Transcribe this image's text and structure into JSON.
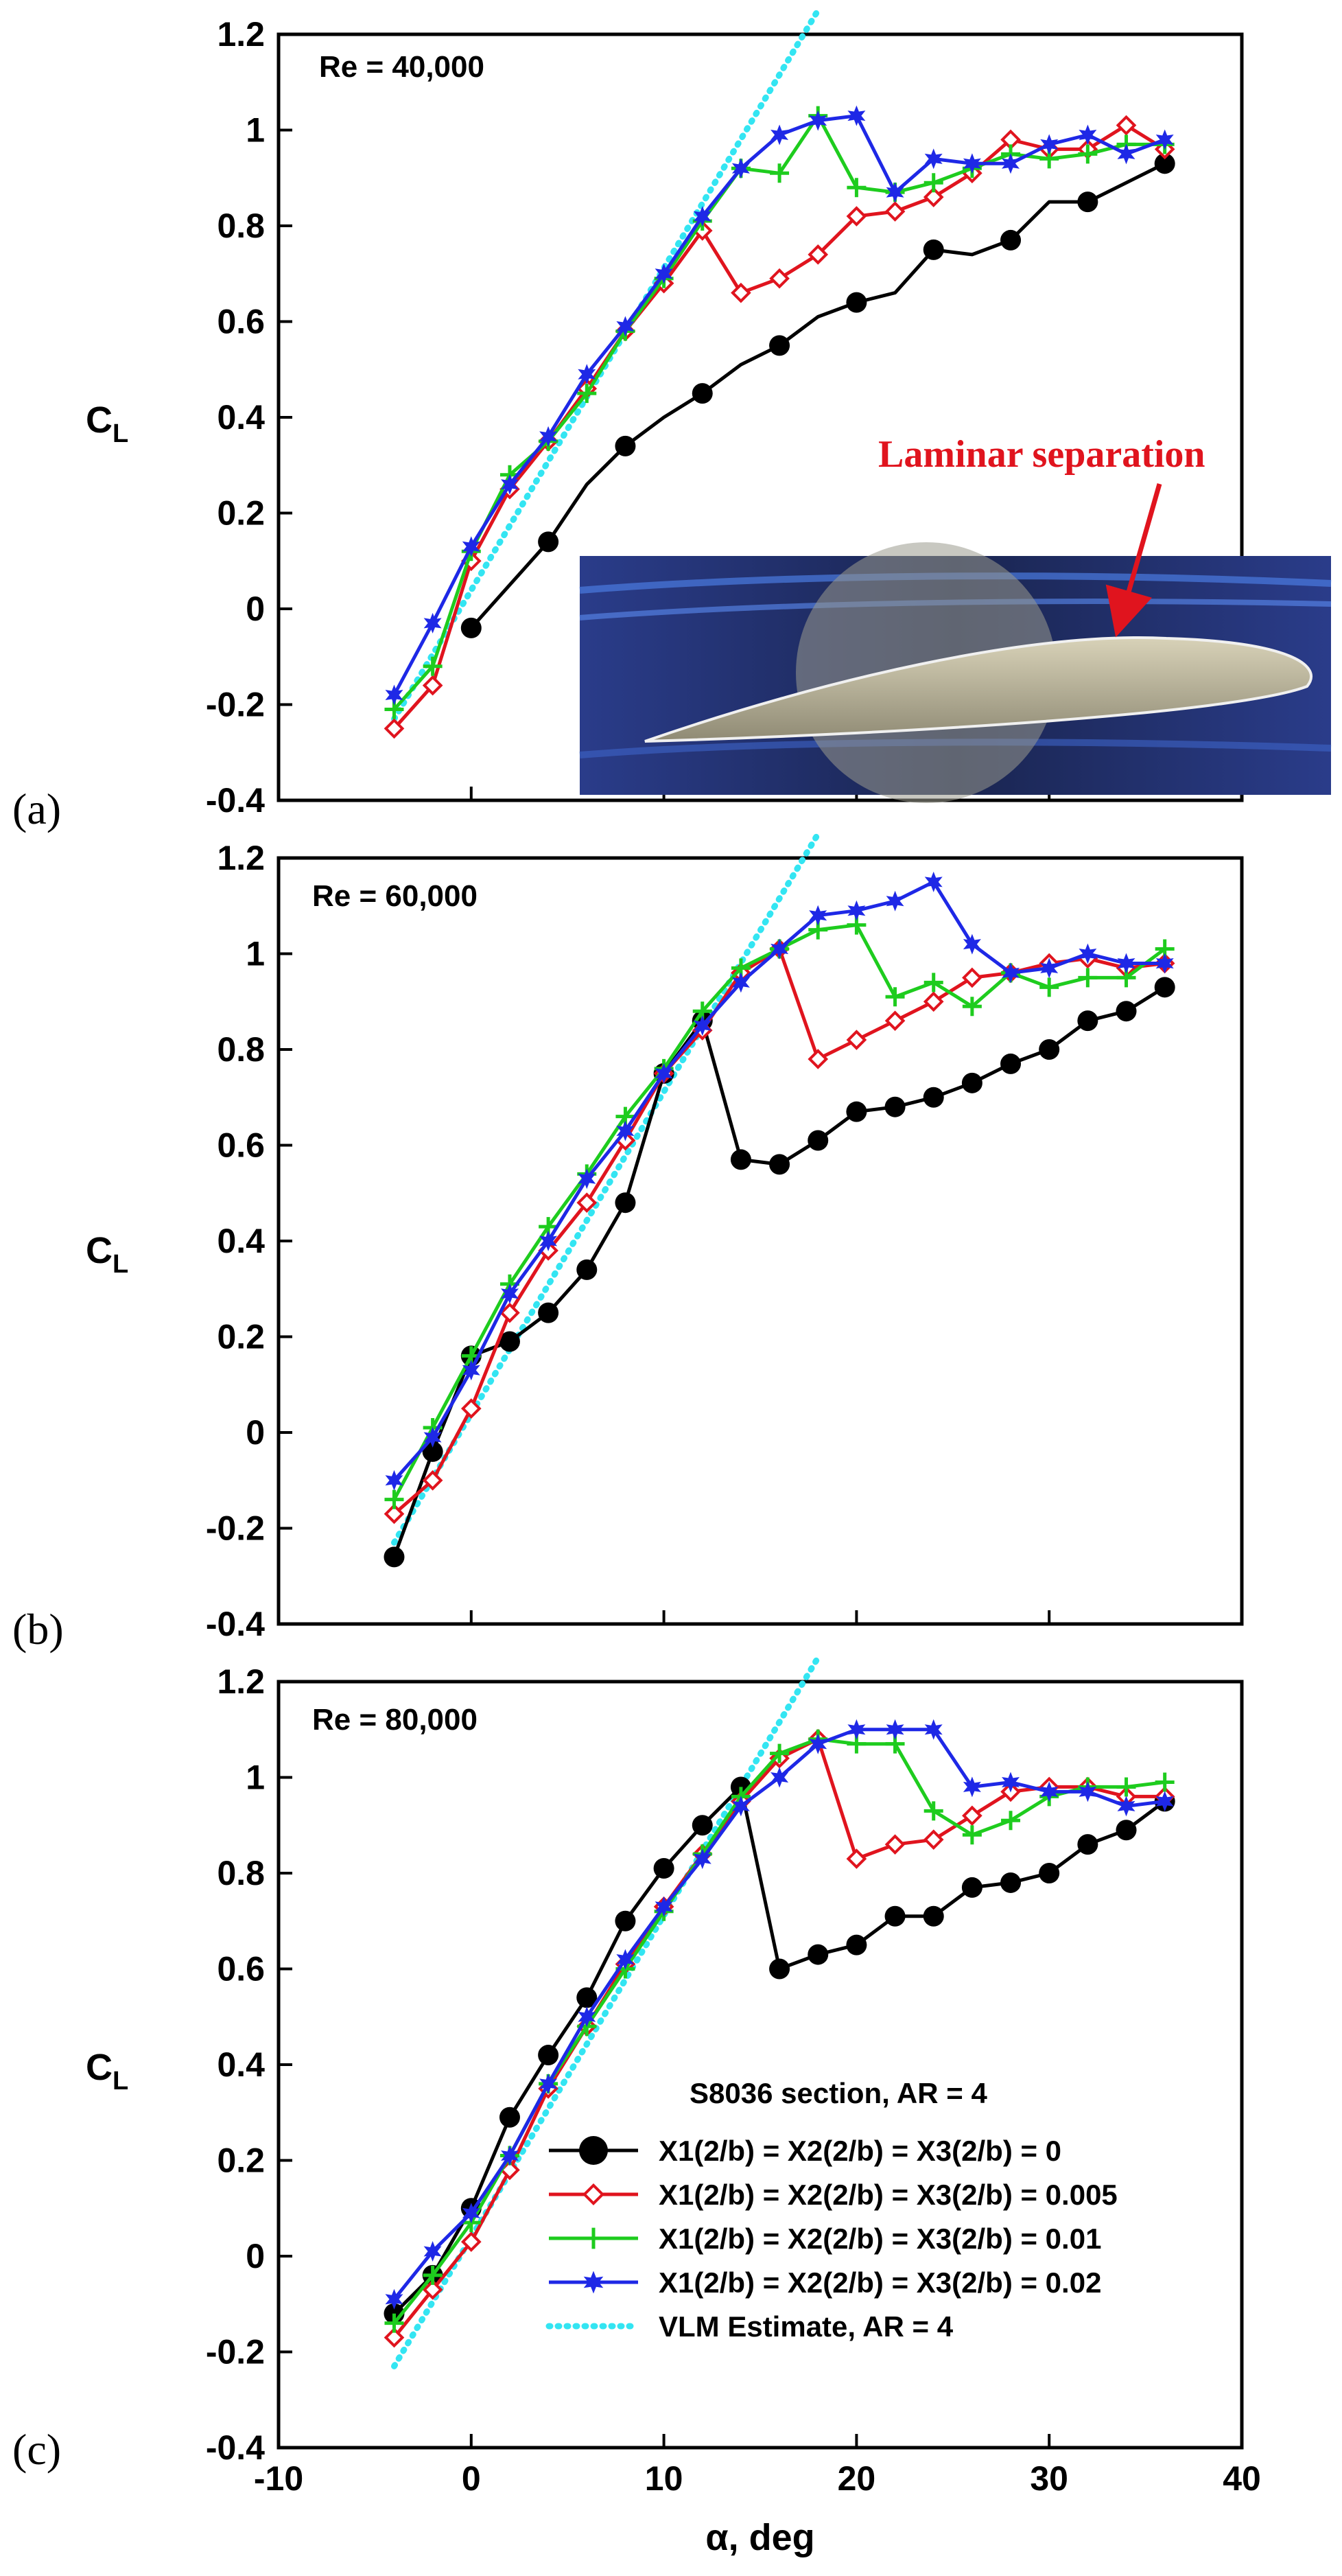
{
  "figure": {
    "panel_letters": [
      "(a)",
      "(b)",
      "(c)"
    ],
    "annotation": "Laminar separation",
    "photo_icon": "airfoil-smoke-visualization-photo",
    "legend_title": "S8036 section, AR = 4"
  },
  "chart_data": [
    {
      "type": "line",
      "panel": "(a)",
      "title": "Re = 40,000",
      "xlabel": "α, deg",
      "ylabel": "C_L",
      "xlim": [
        -10,
        40
      ],
      "ylim": [
        -0.4,
        1.2
      ],
      "xticks": [
        -10,
        0,
        10,
        20,
        30,
        40
      ],
      "yticks": [
        -0.4,
        -0.2,
        0,
        0.2,
        0.4,
        0.6,
        0.8,
        1,
        1.2
      ],
      "ytick_labels": [
        "-0.4",
        "-0.2",
        "0",
        "0.2",
        "0.4",
        "0.6",
        "0.8",
        "1",
        "1.2"
      ],
      "show_xtick_labels": false,
      "series": [
        {
          "name": "X1(2/b) = X2(2/b) = X3(2/b) = 0",
          "color": "#000000",
          "marker": "circle",
          "x": [
            0,
            2,
            4,
            6,
            8,
            10,
            12,
            14,
            16,
            18,
            20,
            22,
            24,
            26,
            28,
            30,
            32,
            34,
            36
          ],
          "y": [
            -0.04,
            0.05,
            0.14,
            0.26,
            0.34,
            0.4,
            0.45,
            0.51,
            0.55,
            0.61,
            0.64,
            0.66,
            0.75,
            0.74,
            0.77,
            0.85,
            0.85,
            0.89,
            0.93
          ],
          "marked": [
            true,
            false,
            true,
            false,
            true,
            false,
            true,
            false,
            true,
            false,
            true,
            false,
            true,
            false,
            true,
            false,
            true,
            false,
            true
          ]
        },
        {
          "name": "X1(2/b) = X2(2/b) = X3(2/b) = 0.005",
          "color": "#e0141e",
          "marker": "diamond",
          "x": [
            -4,
            -2,
            0,
            2,
            4,
            6,
            8,
            10,
            12,
            14,
            16,
            18,
            20,
            22,
            24,
            26,
            28,
            30,
            32,
            34,
            36
          ],
          "y": [
            -0.25,
            -0.16,
            0.1,
            0.25,
            0.35,
            0.46,
            0.58,
            0.68,
            0.79,
            0.66,
            0.69,
            0.74,
            0.82,
            0.83,
            0.86,
            0.91,
            0.98,
            0.96,
            0.96,
            1.01,
            0.96
          ]
        },
        {
          "name": "X1(2/b) = X2(2/b) = X3(2/b) = 0.01",
          "color": "#1ecc1e",
          "marker": "plus",
          "x": [
            -4,
            -2,
            0,
            2,
            4,
            6,
            8,
            10,
            12,
            14,
            16,
            18,
            20,
            22,
            24,
            26,
            28,
            30,
            32,
            34,
            36
          ],
          "y": [
            -0.21,
            -0.12,
            0.12,
            0.28,
            0.35,
            0.45,
            0.58,
            0.69,
            0.81,
            0.92,
            0.91,
            1.03,
            0.88,
            0.87,
            0.89,
            0.92,
            0.95,
            0.94,
            0.95,
            0.97,
            0.97
          ]
        },
        {
          "name": "X1(2/b) = X2(2/b) = X3(2/b) = 0.02",
          "color": "#1e28e6",
          "marker": "star",
          "x": [
            -4,
            -2,
            0,
            2,
            4,
            6,
            8,
            10,
            12,
            14,
            16,
            18,
            20,
            22,
            24,
            26,
            28,
            30,
            32,
            34,
            36
          ],
          "y": [
            -0.18,
            -0.03,
            0.13,
            0.26,
            0.36,
            0.49,
            0.59,
            0.7,
            0.82,
            0.92,
            0.99,
            1.02,
            1.03,
            0.87,
            0.94,
            0.93,
            0.93,
            0.97,
            0.99,
            0.95,
            0.98
          ]
        },
        {
          "name": "VLM Estimate, AR = 4",
          "color": "#33e5f2",
          "style": "dotted",
          "x": [
            -4,
            18
          ],
          "y": [
            -0.23,
            1.25
          ]
        }
      ]
    },
    {
      "type": "line",
      "panel": "(b)",
      "title": "Re = 60,000",
      "xlabel": "α, deg",
      "ylabel": "C_L",
      "xlim": [
        -10,
        40
      ],
      "ylim": [
        -0.4,
        1.2
      ],
      "xticks": [
        -10,
        0,
        10,
        20,
        30,
        40
      ],
      "yticks": [
        -0.4,
        -0.2,
        0,
        0.2,
        0.4,
        0.6,
        0.8,
        1,
        1.2
      ],
      "ytick_labels": [
        "-0.4",
        "-0.2",
        "0",
        "0.2",
        "0.4",
        "0.6",
        "0.8",
        "1",
        "1.2"
      ],
      "show_xtick_labels": false,
      "series": [
        {
          "name": "X1(2/b) = X2(2/b) = X3(2/b) = 0",
          "color": "#000000",
          "marker": "circle",
          "x": [
            -4,
            -2,
            0,
            2,
            4,
            6,
            8,
            10,
            12,
            14,
            16,
            18,
            20,
            22,
            24,
            26,
            28,
            30,
            32,
            34,
            36
          ],
          "y": [
            -0.26,
            -0.04,
            0.16,
            0.19,
            0.25,
            0.34,
            0.48,
            0.75,
            0.86,
            0.57,
            0.56,
            0.61,
            0.67,
            0.68,
            0.7,
            0.73,
            0.77,
            0.8,
            0.86,
            0.88,
            0.93
          ]
        },
        {
          "name": "X1(2/b) = X2(2/b) = X3(2/b) = 0.005",
          "color": "#e0141e",
          "marker": "diamond",
          "x": [
            -4,
            -2,
            0,
            2,
            4,
            6,
            8,
            10,
            12,
            14,
            16,
            18,
            20,
            22,
            24,
            26,
            28,
            30,
            32,
            34,
            36
          ],
          "y": [
            -0.17,
            -0.1,
            0.05,
            0.25,
            0.38,
            0.48,
            0.61,
            0.75,
            0.84,
            0.96,
            1.01,
            0.78,
            0.82,
            0.86,
            0.9,
            0.95,
            0.96,
            0.98,
            0.99,
            0.97,
            0.98
          ]
        },
        {
          "name": "X1(2/b) = X2(2/b) = X3(2/b) = 0.01",
          "color": "#1ecc1e",
          "marker": "plus",
          "x": [
            -4,
            -2,
            0,
            2,
            4,
            6,
            8,
            10,
            12,
            14,
            16,
            18,
            20,
            22,
            24,
            26,
            28,
            30,
            32,
            34,
            36
          ],
          "y": [
            -0.14,
            0.01,
            0.16,
            0.31,
            0.43,
            0.54,
            0.66,
            0.76,
            0.88,
            0.97,
            1.01,
            1.05,
            1.06,
            0.91,
            0.94,
            0.89,
            0.96,
            0.93,
            0.95,
            0.95,
            1.01
          ]
        },
        {
          "name": "X1(2/b) = X2(2/b) = X3(2/b) = 0.02",
          "color": "#1e28e6",
          "marker": "star",
          "x": [
            -4,
            -2,
            0,
            2,
            4,
            6,
            8,
            10,
            12,
            14,
            16,
            18,
            20,
            22,
            24,
            26,
            28,
            30,
            32,
            34,
            36
          ],
          "y": [
            -0.1,
            -0.01,
            0.13,
            0.29,
            0.4,
            0.53,
            0.63,
            0.75,
            0.85,
            0.94,
            1.01,
            1.08,
            1.09,
            1.11,
            1.15,
            1.02,
            0.96,
            0.97,
            1,
            0.98,
            0.98
          ]
        },
        {
          "name": "VLM Estimate, AR = 4",
          "color": "#33e5f2",
          "style": "dotted",
          "x": [
            -4,
            18
          ],
          "y": [
            -0.23,
            1.25
          ]
        }
      ]
    },
    {
      "type": "line",
      "panel": "(c)",
      "title": "Re = 80,000",
      "xlabel": "α, deg",
      "ylabel": "C_L",
      "xlim": [
        -10,
        40
      ],
      "ylim": [
        -0.4,
        1.2
      ],
      "xticks": [
        -10,
        0,
        10,
        20,
        30,
        40
      ],
      "xtick_labels": [
        "-10",
        "0",
        "10",
        "20",
        "30",
        "40"
      ],
      "yticks": [
        -0.4,
        -0.2,
        0,
        0.2,
        0.4,
        0.6,
        0.8,
        1,
        1.2
      ],
      "ytick_labels": [
        "-0.4",
        "-0.2",
        "0",
        "0.2",
        "0.4",
        "0.6",
        "0.8",
        "1",
        "1.2"
      ],
      "show_xtick_labels": true,
      "legend": "bottom-right",
      "series": [
        {
          "name": "X1(2/b) = X2(2/b) = X3(2/b) = 0",
          "color": "#000000",
          "marker": "circle",
          "x": [
            -4,
            -2,
            0,
            2,
            4,
            6,
            8,
            10,
            12,
            14,
            16,
            18,
            20,
            22,
            24,
            26,
            28,
            30,
            32,
            34,
            36
          ],
          "y": [
            -0.12,
            -0.04,
            0.1,
            0.29,
            0.42,
            0.54,
            0.7,
            0.81,
            0.9,
            0.98,
            0.6,
            0.63,
            0.65,
            0.71,
            0.71,
            0.77,
            0.78,
            0.8,
            0.86,
            0.89,
            0.95
          ]
        },
        {
          "name": "X1(2/b) = X2(2/b) = X3(2/b) = 0.005",
          "color": "#e0141e",
          "marker": "diamond",
          "x": [
            -4,
            -2,
            0,
            2,
            4,
            6,
            8,
            10,
            12,
            14,
            16,
            18,
            20,
            22,
            24,
            26,
            28,
            30,
            32,
            34,
            36
          ],
          "y": [
            -0.17,
            -0.07,
            0.03,
            0.18,
            0.35,
            0.48,
            0.61,
            0.73,
            0.84,
            0.95,
            1.04,
            1.08,
            0.83,
            0.86,
            0.87,
            0.92,
            0.97,
            0.98,
            0.98,
            0.96,
            0.96
          ]
        },
        {
          "name": "X1(2/b) = X2(2/b) = X3(2/b) = 0.01",
          "color": "#1ecc1e",
          "marker": "plus",
          "x": [
            -4,
            -2,
            0,
            2,
            4,
            6,
            8,
            10,
            12,
            14,
            16,
            18,
            20,
            22,
            24,
            26,
            28,
            30,
            32,
            34,
            36
          ],
          "y": [
            -0.14,
            -0.04,
            0.07,
            0.21,
            0.36,
            0.48,
            0.6,
            0.72,
            0.84,
            0.96,
            1.05,
            1.08,
            1.07,
            1.07,
            0.93,
            0.88,
            0.91,
            0.96,
            0.98,
            0.98,
            0.99
          ]
        },
        {
          "name": "X1(2/b) = X2(2/b) = X3(2/b) = 0.02",
          "color": "#1e28e6",
          "marker": "star",
          "x": [
            -4,
            -2,
            0,
            2,
            4,
            6,
            8,
            10,
            12,
            14,
            16,
            18,
            20,
            22,
            24,
            26,
            28,
            30,
            32,
            34,
            36
          ],
          "y": [
            -0.09,
            0.01,
            0.09,
            0.21,
            0.36,
            0.5,
            0.62,
            0.73,
            0.83,
            0.94,
            1,
            1.07,
            1.1,
            1.1,
            1.1,
            0.98,
            0.99,
            0.97,
            0.97,
            0.94,
            0.95
          ]
        },
        {
          "name": "VLM Estimate, AR = 4",
          "color": "#33e5f2",
          "style": "dotted",
          "x": [
            -4,
            18
          ],
          "y": [
            -0.23,
            1.25
          ]
        }
      ]
    }
  ]
}
